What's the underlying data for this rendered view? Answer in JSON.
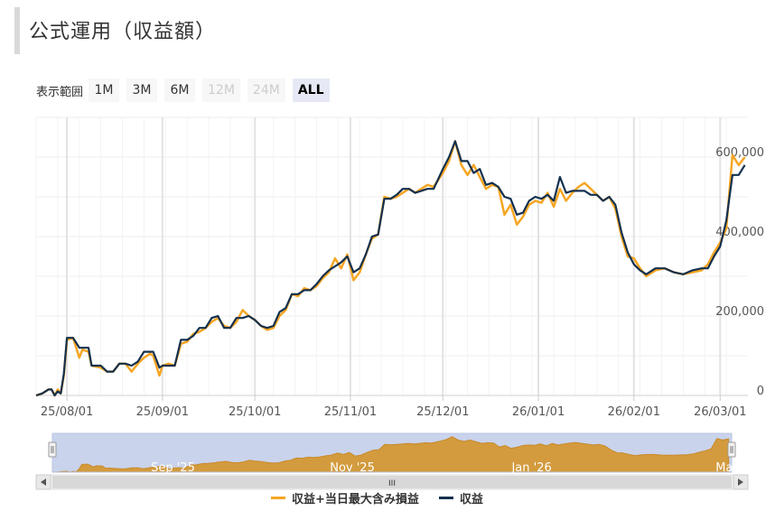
{
  "header": {
    "title": "公式運用（収益額）"
  },
  "range_selector": {
    "label": "表示範囲",
    "buttons": [
      {
        "label": "1M",
        "state": "enabled"
      },
      {
        "label": "3M",
        "state": "enabled"
      },
      {
        "label": "6M",
        "state": "enabled"
      },
      {
        "label": "12M",
        "state": "disabled"
      },
      {
        "label": "24M",
        "state": "disabled"
      },
      {
        "label": "ALL",
        "state": "active"
      }
    ]
  },
  "navigator": {
    "ticks": [
      "Sep '25",
      "Nov '25",
      "Jan '26",
      "Mar..."
    ],
    "scroll_grip": "III"
  },
  "chart_data": {
    "type": "line",
    "title": "",
    "xlabel": "",
    "ylabel": "",
    "x_ticks": [
      "25/08/01",
      "25/09/01",
      "25/10/01",
      "25/11/01",
      "25/12/01",
      "26/01/01",
      "26/02/01",
      "26/03/01"
    ],
    "y_ticks": [
      "0",
      "200,000",
      "400,000",
      "600,000"
    ],
    "ylim": [
      0,
      700000
    ],
    "grid": true,
    "legend_position": "bottom-center",
    "colors": {
      "series_a": "#f5a623",
      "series_b": "#13304e",
      "navigator_fill": "#d39b3d",
      "navigator_mask": "#c9d3ec"
    },
    "series": [
      {
        "name": "収益+当日最大含み損益",
        "color": "#f5a623",
        "points": [
          [
            "2025-07-22",
            0
          ],
          [
            "2025-07-24",
            5000
          ],
          [
            "2025-07-26",
            15000
          ],
          [
            "2025-07-27",
            15000
          ],
          [
            "2025-07-28",
            0
          ],
          [
            "2025-07-29",
            15000
          ],
          [
            "2025-07-30",
            5000
          ],
          [
            "2025-07-31",
            50000
          ],
          [
            "2025-08-01",
            140000
          ],
          [
            "2025-08-03",
            145000
          ],
          [
            "2025-08-05",
            95000
          ],
          [
            "2025-08-06",
            115000
          ],
          [
            "2025-08-08",
            110000
          ],
          [
            "2025-08-09",
            75000
          ],
          [
            "2025-08-12",
            70000
          ],
          [
            "2025-08-14",
            60000
          ],
          [
            "2025-08-16",
            60000
          ],
          [
            "2025-08-18",
            80000
          ],
          [
            "2025-08-20",
            80000
          ],
          [
            "2025-08-22",
            60000
          ],
          [
            "2025-08-24",
            80000
          ],
          [
            "2025-08-26",
            95000
          ],
          [
            "2025-08-28",
            105000
          ],
          [
            "2025-08-29",
            100000
          ],
          [
            "2025-08-31",
            50000
          ],
          [
            "2025-09-01",
            75000
          ],
          [
            "2025-09-03",
            80000
          ],
          [
            "2025-09-05",
            75000
          ],
          [
            "2025-09-07",
            130000
          ],
          [
            "2025-09-09",
            135000
          ],
          [
            "2025-09-11",
            155000
          ],
          [
            "2025-09-13",
            160000
          ],
          [
            "2025-09-15",
            170000
          ],
          [
            "2025-09-17",
            185000
          ],
          [
            "2025-09-19",
            195000
          ],
          [
            "2025-09-21",
            175000
          ],
          [
            "2025-09-23",
            170000
          ],
          [
            "2025-09-25",
            185000
          ],
          [
            "2025-09-27",
            215000
          ],
          [
            "2025-09-29",
            200000
          ],
          [
            "2025-10-01",
            190000
          ],
          [
            "2025-10-03",
            175000
          ],
          [
            "2025-10-05",
            165000
          ],
          [
            "2025-10-07",
            170000
          ],
          [
            "2025-10-09",
            200000
          ],
          [
            "2025-10-11",
            215000
          ],
          [
            "2025-10-13",
            255000
          ],
          [
            "2025-10-15",
            250000
          ],
          [
            "2025-10-17",
            270000
          ],
          [
            "2025-10-19",
            265000
          ],
          [
            "2025-10-21",
            275000
          ],
          [
            "2025-10-23",
            295000
          ],
          [
            "2025-10-25",
            310000
          ],
          [
            "2025-10-27",
            345000
          ],
          [
            "2025-10-29",
            320000
          ],
          [
            "2025-10-31",
            355000
          ],
          [
            "2025-11-02",
            290000
          ],
          [
            "2025-11-04",
            310000
          ],
          [
            "2025-11-06",
            355000
          ],
          [
            "2025-11-08",
            395000
          ],
          [
            "2025-11-10",
            405000
          ],
          [
            "2025-11-12",
            500000
          ],
          [
            "2025-11-14",
            495000
          ],
          [
            "2025-11-16",
            500000
          ],
          [
            "2025-11-18",
            510000
          ],
          [
            "2025-11-20",
            520000
          ],
          [
            "2025-11-22",
            510000
          ],
          [
            "2025-11-24",
            520000
          ],
          [
            "2025-11-26",
            530000
          ],
          [
            "2025-11-28",
            525000
          ],
          [
            "2025-12-01",
            560000
          ],
          [
            "2025-12-03",
            590000
          ],
          [
            "2025-12-05",
            640000
          ],
          [
            "2025-12-07",
            580000
          ],
          [
            "2025-12-09",
            555000
          ],
          [
            "2025-12-11",
            580000
          ],
          [
            "2025-12-13",
            550000
          ],
          [
            "2025-12-15",
            520000
          ],
          [
            "2025-12-17",
            530000
          ],
          [
            "2025-12-19",
            525000
          ],
          [
            "2025-12-21",
            455000
          ],
          [
            "2025-12-23",
            480000
          ],
          [
            "2025-12-25",
            430000
          ],
          [
            "2025-12-27",
            450000
          ],
          [
            "2025-12-29",
            480000
          ],
          [
            "2025-12-31",
            490000
          ],
          [
            "2026-01-02",
            485000
          ],
          [
            "2026-01-04",
            510000
          ],
          [
            "2026-01-06",
            475000
          ],
          [
            "2026-01-08",
            520000
          ],
          [
            "2026-01-10",
            490000
          ],
          [
            "2026-01-12",
            510000
          ],
          [
            "2026-01-14",
            525000
          ],
          [
            "2026-01-16",
            535000
          ],
          [
            "2026-01-18",
            520000
          ],
          [
            "2026-01-20",
            505000
          ],
          [
            "2026-01-22",
            490000
          ],
          [
            "2026-01-24",
            500000
          ],
          [
            "2026-01-26",
            470000
          ],
          [
            "2026-01-28",
            400000
          ],
          [
            "2026-01-30",
            350000
          ],
          [
            "2026-02-01",
            345000
          ],
          [
            "2026-02-03",
            320000
          ],
          [
            "2026-02-05",
            300000
          ],
          [
            "2026-02-08",
            315000
          ],
          [
            "2026-02-11",
            320000
          ],
          [
            "2026-02-14",
            310000
          ],
          [
            "2026-02-17",
            305000
          ],
          [
            "2026-02-20",
            310000
          ],
          [
            "2026-02-23",
            315000
          ],
          [
            "2026-02-25",
            330000
          ],
          [
            "2026-02-27",
            360000
          ],
          [
            "2026-03-01",
            385000
          ],
          [
            "2026-03-03",
            420000
          ],
          [
            "2026-03-05",
            605000
          ],
          [
            "2026-03-07",
            580000
          ],
          [
            "2026-03-09",
            600000
          ]
        ]
      },
      {
        "name": "収益",
        "color": "#13304e",
        "points": [
          [
            "2025-07-22",
            0
          ],
          [
            "2025-07-24",
            5000
          ],
          [
            "2025-07-26",
            15000
          ],
          [
            "2025-07-27",
            15000
          ],
          [
            "2025-07-28",
            0
          ],
          [
            "2025-07-29",
            10000
          ],
          [
            "2025-07-30",
            5000
          ],
          [
            "2025-07-31",
            55000
          ],
          [
            "2025-08-01",
            145000
          ],
          [
            "2025-08-03",
            145000
          ],
          [
            "2025-08-05",
            120000
          ],
          [
            "2025-08-06",
            120000
          ],
          [
            "2025-08-08",
            120000
          ],
          [
            "2025-08-09",
            75000
          ],
          [
            "2025-08-12",
            75000
          ],
          [
            "2025-08-14",
            60000
          ],
          [
            "2025-08-16",
            60000
          ],
          [
            "2025-08-18",
            80000
          ],
          [
            "2025-08-20",
            80000
          ],
          [
            "2025-08-22",
            75000
          ],
          [
            "2025-08-24",
            85000
          ],
          [
            "2025-08-26",
            110000
          ],
          [
            "2025-08-28",
            110000
          ],
          [
            "2025-08-29",
            110000
          ],
          [
            "2025-08-31",
            70000
          ],
          [
            "2025-09-01",
            75000
          ],
          [
            "2025-09-03",
            75000
          ],
          [
            "2025-09-05",
            75000
          ],
          [
            "2025-09-07",
            140000
          ],
          [
            "2025-09-09",
            140000
          ],
          [
            "2025-09-11",
            150000
          ],
          [
            "2025-09-13",
            170000
          ],
          [
            "2025-09-15",
            170000
          ],
          [
            "2025-09-17",
            195000
          ],
          [
            "2025-09-19",
            200000
          ],
          [
            "2025-09-21",
            170000
          ],
          [
            "2025-09-23",
            170000
          ],
          [
            "2025-09-25",
            195000
          ],
          [
            "2025-09-27",
            195000
          ],
          [
            "2025-09-29",
            200000
          ],
          [
            "2025-10-01",
            190000
          ],
          [
            "2025-10-03",
            175000
          ],
          [
            "2025-10-05",
            170000
          ],
          [
            "2025-10-07",
            175000
          ],
          [
            "2025-10-09",
            210000
          ],
          [
            "2025-10-11",
            220000
          ],
          [
            "2025-10-13",
            255000
          ],
          [
            "2025-10-15",
            255000
          ],
          [
            "2025-10-17",
            265000
          ],
          [
            "2025-10-19",
            265000
          ],
          [
            "2025-10-21",
            280000
          ],
          [
            "2025-10-23",
            300000
          ],
          [
            "2025-10-25",
            315000
          ],
          [
            "2025-10-27",
            325000
          ],
          [
            "2025-10-29",
            335000
          ],
          [
            "2025-10-31",
            350000
          ],
          [
            "2025-11-02",
            310000
          ],
          [
            "2025-11-04",
            320000
          ],
          [
            "2025-11-06",
            355000
          ],
          [
            "2025-11-08",
            400000
          ],
          [
            "2025-11-10",
            405000
          ],
          [
            "2025-11-12",
            495000
          ],
          [
            "2025-11-14",
            495000
          ],
          [
            "2025-11-16",
            505000
          ],
          [
            "2025-11-18",
            520000
          ],
          [
            "2025-11-20",
            520000
          ],
          [
            "2025-11-22",
            510000
          ],
          [
            "2025-11-24",
            515000
          ],
          [
            "2025-11-26",
            520000
          ],
          [
            "2025-11-28",
            520000
          ],
          [
            "2025-12-01",
            570000
          ],
          [
            "2025-12-03",
            600000
          ],
          [
            "2025-12-05",
            640000
          ],
          [
            "2025-12-07",
            590000
          ],
          [
            "2025-12-09",
            590000
          ],
          [
            "2025-12-11",
            560000
          ],
          [
            "2025-12-13",
            570000
          ],
          [
            "2025-12-15",
            530000
          ],
          [
            "2025-12-17",
            535000
          ],
          [
            "2025-12-19",
            525000
          ],
          [
            "2025-12-21",
            500000
          ],
          [
            "2025-12-23",
            495000
          ],
          [
            "2025-12-25",
            455000
          ],
          [
            "2025-12-27",
            460000
          ],
          [
            "2025-12-29",
            490000
          ],
          [
            "2025-12-31",
            500000
          ],
          [
            "2026-01-02",
            495000
          ],
          [
            "2026-01-04",
            505000
          ],
          [
            "2026-01-06",
            490000
          ],
          [
            "2026-01-08",
            550000
          ],
          [
            "2026-01-10",
            510000
          ],
          [
            "2026-01-12",
            515000
          ],
          [
            "2026-01-14",
            515000
          ],
          [
            "2026-01-16",
            515000
          ],
          [
            "2026-01-18",
            505000
          ],
          [
            "2026-01-20",
            505000
          ],
          [
            "2026-01-22",
            490000
          ],
          [
            "2026-01-24",
            500000
          ],
          [
            "2026-01-26",
            480000
          ],
          [
            "2026-01-28",
            410000
          ],
          [
            "2026-01-30",
            360000
          ],
          [
            "2026-02-01",
            330000
          ],
          [
            "2026-02-03",
            315000
          ],
          [
            "2026-02-05",
            305000
          ],
          [
            "2026-02-08",
            320000
          ],
          [
            "2026-02-11",
            320000
          ],
          [
            "2026-02-14",
            310000
          ],
          [
            "2026-02-17",
            305000
          ],
          [
            "2026-02-20",
            315000
          ],
          [
            "2026-02-23",
            320000
          ],
          [
            "2026-02-25",
            320000
          ],
          [
            "2026-02-27",
            350000
          ],
          [
            "2026-03-01",
            375000
          ],
          [
            "2026-03-03",
            440000
          ],
          [
            "2026-03-05",
            555000
          ],
          [
            "2026-03-07",
            555000
          ],
          [
            "2026-03-09",
            580000
          ]
        ]
      }
    ]
  }
}
